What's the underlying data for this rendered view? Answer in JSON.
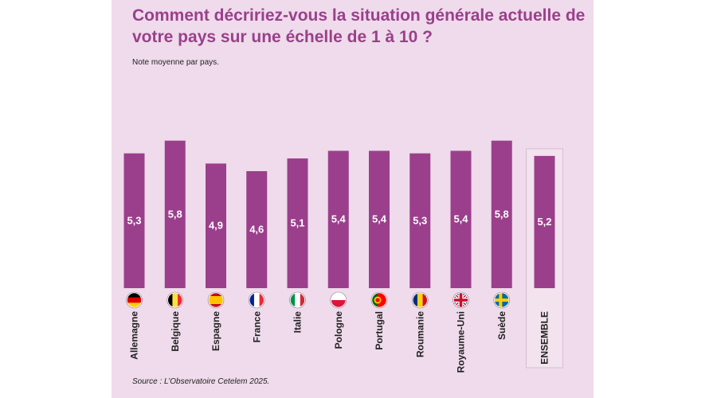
{
  "colors": {
    "bar": "#9b3f8c",
    "title": "#9b3f8c",
    "background": "#efdbeb",
    "value_text": "#ffffff"
  },
  "chart_data": {
    "type": "bar",
    "title": "Comment décririez-vous la situation générale actuelle de votre pays sur une échelle de 1 à 10 ?",
    "subtitle": "Note moyenne par pays.",
    "source": "Source : L’Observatoire Cetelem 2025.",
    "categories": [
      "Allemagne",
      "Belgique",
      "Espagne",
      "France",
      "Italie",
      "Pologne",
      "Portugal",
      "Roumanie",
      "Royaume-Uni",
      "Suède",
      "ENSEMBLE"
    ],
    "values": [
      5.3,
      5.8,
      4.9,
      4.6,
      5.1,
      5.4,
      5.4,
      5.3,
      5.4,
      5.8,
      5.2
    ],
    "value_labels": [
      "5,3",
      "5,8",
      "4,9",
      "4,6",
      "5,1",
      "5,4",
      "5,4",
      "5,3",
      "5,4",
      "5,8",
      "5,2"
    ],
    "flags": [
      "flag-germany",
      "flag-belgium",
      "flag-spain",
      "flag-france",
      "flag-italy",
      "flag-poland",
      "flag-portugal",
      "flag-romania",
      "flag-uk",
      "flag-sweden",
      null
    ],
    "highlight_last": true,
    "ylim": [
      0,
      10
    ],
    "xlabel": "",
    "ylabel": ""
  }
}
